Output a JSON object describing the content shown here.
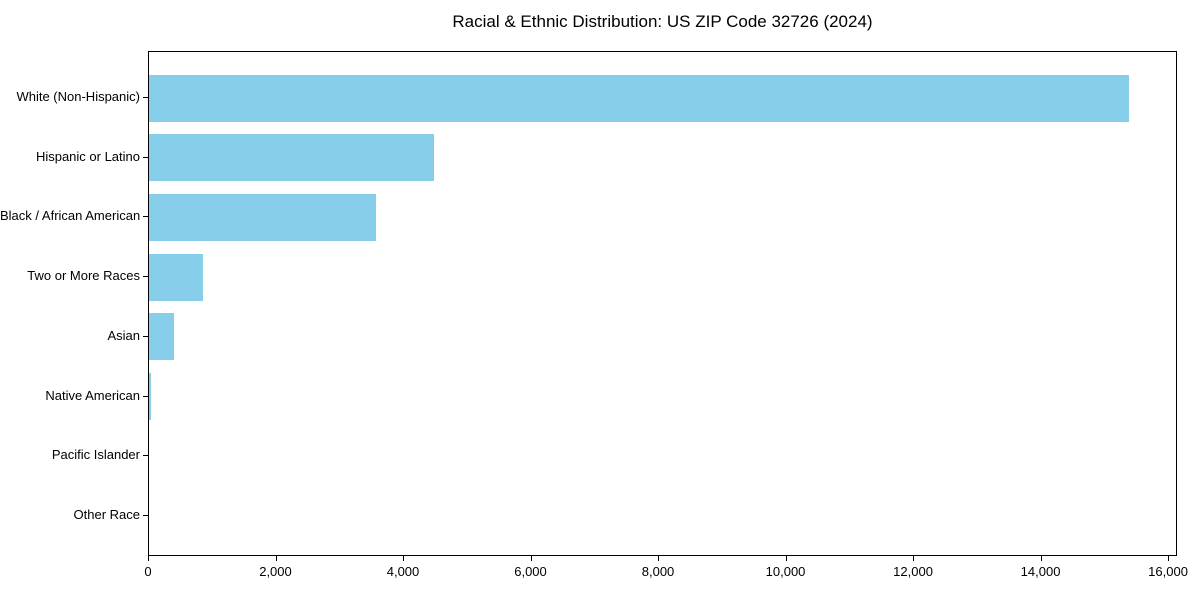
{
  "chart_data": {
    "type": "bar",
    "orientation": "horizontal",
    "title": "Racial & Ethnic Distribution: US ZIP Code 32726 (2024)",
    "categories": [
      "White (Non-Hispanic)",
      "Hispanic or Latino",
      "Black / African American",
      "Two or More Races",
      "Asian",
      "Native American",
      "Pacific Islander",
      "Other Race"
    ],
    "values": [
      15370,
      4470,
      3560,
      850,
      390,
      30,
      0,
      0
    ],
    "xlabel": "",
    "ylabel": "",
    "xlim": [
      0,
      16140
    ],
    "x_ticks": [
      0,
      2000,
      4000,
      6000,
      8000,
      10000,
      12000,
      14000,
      16000
    ],
    "x_tick_labels": [
      "0",
      "2,000",
      "4,000",
      "6,000",
      "8,000",
      "10,000",
      "12,000",
      "14,000",
      "16,000"
    ],
    "bar_color": "#87CEEB",
    "axis_color": "#000000",
    "text_color": "#000000",
    "grid": false,
    "legend_position": "none",
    "background_color": "#ffffff"
  }
}
